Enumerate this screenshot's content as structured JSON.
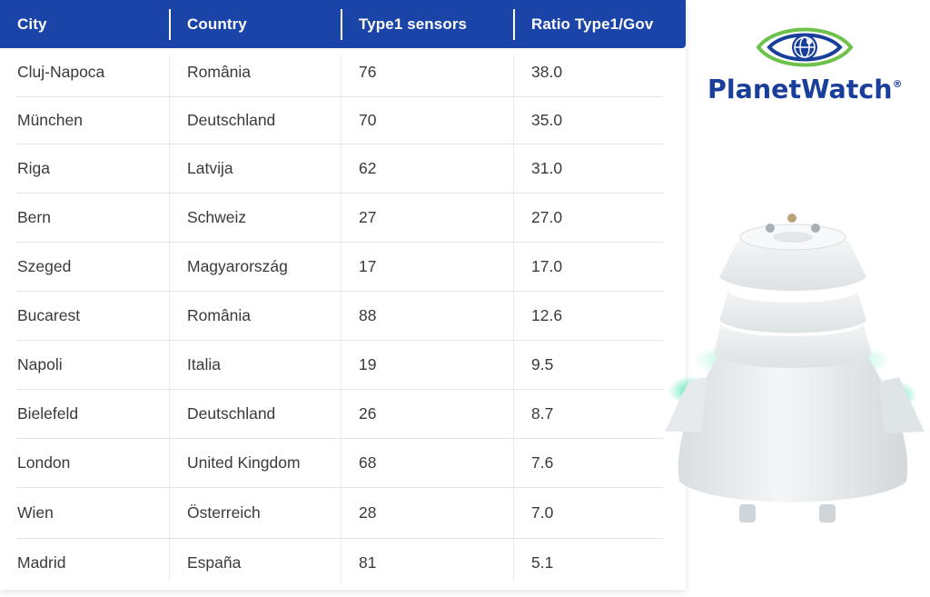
{
  "table": {
    "headers": [
      "City",
      "Country",
      "Type1 sensors",
      "Ratio Type1/Gov"
    ],
    "rows": [
      [
        "Cluj-Napoca",
        "România",
        "76",
        "38.0"
      ],
      [
        "München",
        "Deutschland",
        "70",
        "35.0"
      ],
      [
        "Riga",
        "Latvija",
        "62",
        "31.0"
      ],
      [
        "Bern",
        "Schweiz",
        "27",
        "27.0"
      ],
      [
        "Szeged",
        "Magyarország",
        "17",
        "17.0"
      ],
      [
        "Bucarest",
        "România",
        "88",
        "12.6"
      ],
      [
        "Napoli",
        "Italia",
        "19",
        "9.5"
      ],
      [
        "Bielefeld",
        "Deutschland",
        "26",
        "8.7"
      ],
      [
        "London",
        "United Kingdom",
        "68",
        "7.6"
      ],
      [
        "Wien",
        "Österreich",
        "28",
        "7.0"
      ],
      [
        "Madrid",
        "España",
        "81",
        "5.1"
      ]
    ]
  },
  "logo": {
    "text": "PlanetWatch",
    "registered": "®",
    "icon": "eye-globe-icon"
  },
  "device": {
    "icon": "air-quality-sensor-device"
  },
  "colors": {
    "header_bg": "#1a44a8",
    "brand_blue": "#1a3f9b",
    "brand_green": "#6cc24a",
    "device_glow": "#2fe0a0",
    "cell_text": "#3a3a3a"
  }
}
